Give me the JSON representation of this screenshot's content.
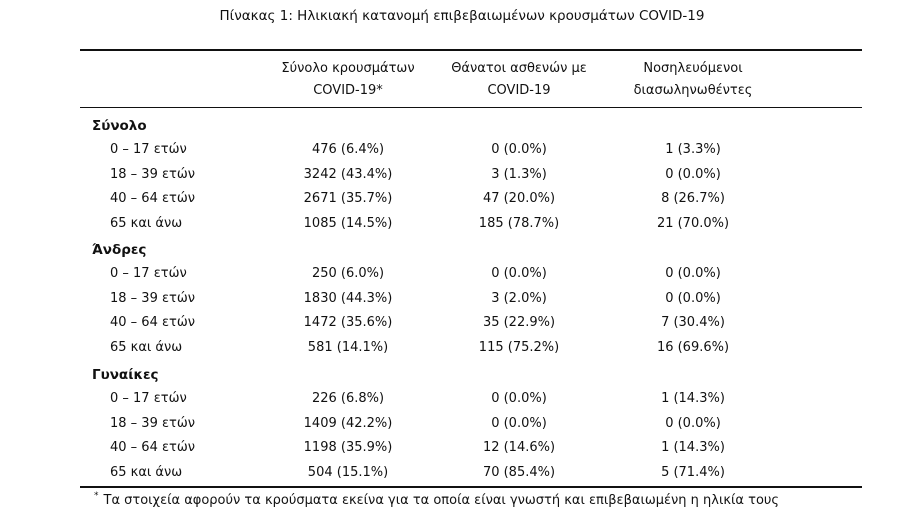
{
  "title": "Πίνακας 1: Ηλικιακή κατανομή επιβεβαιωμένων κρουσμάτων COVID-19",
  "columns": [
    {
      "line1": "Σύνολο κρουσμάτων",
      "line2": "COVID-19*"
    },
    {
      "line1": "Θάνατοι ασθενών με",
      "line2": "COVID-19"
    },
    {
      "line1": "Νοσηλευόμενοι",
      "line2": "διασωληνωθέντες"
    }
  ],
  "sections": [
    {
      "name": "Σύνολο",
      "rows": [
        {
          "age": "0 – 17 ετών",
          "cases": "476 (6.4%)",
          "deaths": "0 (0.0%)",
          "intubated": "1 (3.3%)"
        },
        {
          "age": "18 – 39 ετών",
          "cases": "3242 (43.4%)",
          "deaths": "3 (1.3%)",
          "intubated": "0 (0.0%)"
        },
        {
          "age": "40 – 64 ετών",
          "cases": "2671 (35.7%)",
          "deaths": "47 (20.0%)",
          "intubated": "8 (26.7%)"
        },
        {
          "age": "65 και άνω",
          "cases": "1085 (14.5%)",
          "deaths": "185 (78.7%)",
          "intubated": "21 (70.0%)"
        }
      ]
    },
    {
      "name": "Άνδρες",
      "rows": [
        {
          "age": "0 – 17 ετών",
          "cases": "250 (6.0%)",
          "deaths": "0 (0.0%)",
          "intubated": "0 (0.0%)"
        },
        {
          "age": "18 – 39 ετών",
          "cases": "1830 (44.3%)",
          "deaths": "3 (2.0%)",
          "intubated": "0 (0.0%)"
        },
        {
          "age": "40 – 64 ετών",
          "cases": "1472 (35.6%)",
          "deaths": "35 (22.9%)",
          "intubated": "7 (30.4%)"
        },
        {
          "age": "65 και άνω",
          "cases": "581 (14.1%)",
          "deaths": "115 (75.2%)",
          "intubated": "16 (69.6%)"
        }
      ]
    },
    {
      "name": "Γυναίκες",
      "rows": [
        {
          "age": "0 – 17 ετών",
          "cases": "226 (6.8%)",
          "deaths": "0 (0.0%)",
          "intubated": "1 (14.3%)"
        },
        {
          "age": "18 – 39 ετών",
          "cases": "1409 (42.2%)",
          "deaths": "0 (0.0%)",
          "intubated": "0 (0.0%)"
        },
        {
          "age": "40 – 64 ετών",
          "cases": "1198 (35.9%)",
          "deaths": "12 (14.6%)",
          "intubated": "1 (14.3%)"
        },
        {
          "age": "65 και άνω",
          "cases": "504 (15.1%)",
          "deaths": "70 (85.4%)",
          "intubated": "5 (71.4%)"
        }
      ]
    }
  ],
  "footnote": {
    "marker": "*",
    "text": "Τα στοιχεία αφορούν τα κρούσματα εκείνα για τα οποία είναι γνωστή και επιβεβαιωμένη η ηλικία τους"
  }
}
